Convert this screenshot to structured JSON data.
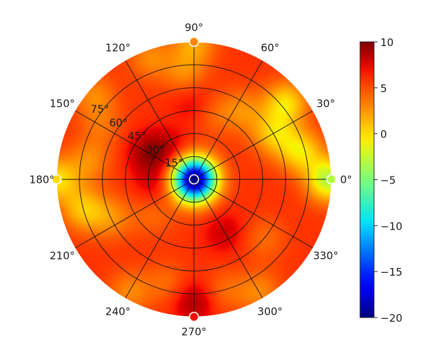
{
  "chart_data": {
    "type": "heatmap",
    "projection": "polar",
    "title": "",
    "angular_ticks": [
      "0°",
      "30°",
      "60°",
      "90°",
      "120°",
      "150°",
      "180°",
      "210°",
      "240°",
      "270°",
      "300°",
      "330°"
    ],
    "angular_tick_values": [
      0,
      30,
      60,
      90,
      120,
      150,
      180,
      210,
      240,
      270,
      300,
      330
    ],
    "radial_tick_labels": [
      "15°",
      "30°",
      "45°",
      "60°",
      "75°"
    ],
    "radial_tick_values": [
      15,
      30,
      45,
      60,
      75
    ],
    "radial_range": [
      0,
      90
    ],
    "grid": true,
    "colorbar": {
      "colormap": "jet",
      "range": [
        -20,
        10
      ],
      "ticks": [
        -20,
        -15,
        -10,
        -5,
        0,
        5,
        10
      ],
      "tick_labels": [
        "−20",
        "−15",
        "−10",
        "−5",
        "0",
        "5",
        "10"
      ],
      "placement": "right"
    },
    "field": {
      "baseline_value": 6,
      "features": [
        {
          "azimuth_deg": 0,
          "elevation_deg": 88,
          "value": -3
        },
        {
          "azimuth_deg": 15,
          "elevation_deg": 72,
          "value": 0
        },
        {
          "azimuth_deg": 30,
          "elevation_deg": 60,
          "value": 1
        },
        {
          "azimuth_deg": 40,
          "elevation_deg": 78,
          "value": 0
        },
        {
          "azimuth_deg": 55,
          "elevation_deg": 55,
          "value": 3
        },
        {
          "azimuth_deg": 75,
          "elevation_deg": 45,
          "value": 4
        },
        {
          "azimuth_deg": 90,
          "elevation_deg": 90,
          "value": 2
        },
        {
          "azimuth_deg": 95,
          "elevation_deg": 70,
          "value": 3
        },
        {
          "azimuth_deg": 110,
          "elevation_deg": 85,
          "value": 3
        },
        {
          "azimuth_deg": 140,
          "elevation_deg": 85,
          "value": 3
        },
        {
          "azimuth_deg": 150,
          "elevation_deg": 70,
          "value": 4
        },
        {
          "azimuth_deg": 170,
          "elevation_deg": 70,
          "value": 3
        },
        {
          "azimuth_deg": 180,
          "elevation_deg": 90,
          "value": 0
        },
        {
          "azimuth_deg": 195,
          "elevation_deg": 75,
          "value": 1
        },
        {
          "azimuth_deg": 205,
          "elevation_deg": 60,
          "value": 3
        },
        {
          "azimuth_deg": 220,
          "elevation_deg": 35,
          "value": 4
        },
        {
          "azimuth_deg": 240,
          "elevation_deg": 85,
          "value": 3
        },
        {
          "azimuth_deg": 255,
          "elevation_deg": 70,
          "value": 4
        },
        {
          "azimuth_deg": 285,
          "elevation_deg": 75,
          "value": 4
        },
        {
          "azimuth_deg": 300,
          "elevation_deg": 85,
          "value": 3
        },
        {
          "azimuth_deg": 320,
          "elevation_deg": 60,
          "value": 4
        },
        {
          "azimuth_deg": 130,
          "elevation_deg": 25,
          "value": 8
        },
        {
          "azimuth_deg": 150,
          "elevation_deg": 35,
          "value": 9
        },
        {
          "azimuth_deg": 90,
          "elevation_deg": 50,
          "value": 8
        },
        {
          "azimuth_deg": 270,
          "elevation_deg": 80,
          "value": 9
        },
        {
          "azimuth_deg": 190,
          "elevation_deg": 25,
          "value": 8
        },
        {
          "azimuth_deg": 300,
          "elevation_deg": 40,
          "value": 8
        },
        {
          "azimuth_deg": 270,
          "elevation_deg": 0,
          "value": -20
        }
      ]
    },
    "edge_markers": [
      {
        "azimuth_deg": 0,
        "elevation_deg": 90,
        "value": -3
      },
      {
        "azimuth_deg": 90,
        "elevation_deg": 90,
        "value": 3
      },
      {
        "azimuth_deg": 180,
        "elevation_deg": 90,
        "value": 0
      },
      {
        "azimuth_deg": 270,
        "elevation_deg": 90,
        "value": 7
      },
      {
        "azimuth_deg": 0,
        "elevation_deg": 0,
        "value": -20
      }
    ]
  }
}
